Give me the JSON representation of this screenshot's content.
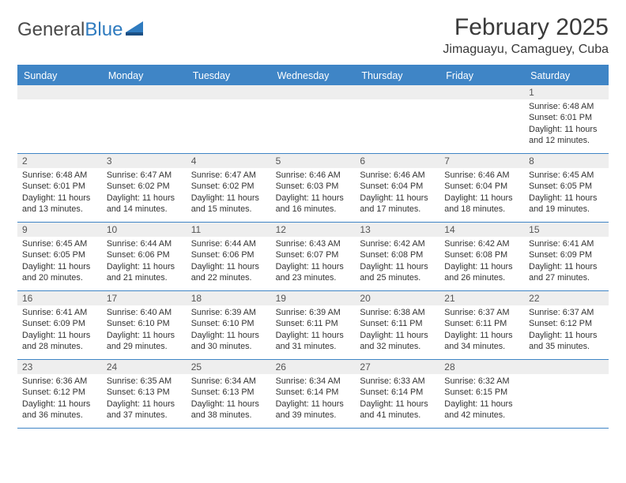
{
  "logo": {
    "text1": "General",
    "text2": "Blue"
  },
  "title": "February 2025",
  "location": "Jimaguayu, Camaguey, Cuba",
  "colors": {
    "header_bg": "#3f85c6",
    "header_text": "#ffffff",
    "datebar_bg": "#eeeeee",
    "body_text": "#333333",
    "logo_gray": "#4a4a4a",
    "logo_blue": "#2f7bbf"
  },
  "dayNames": [
    "Sunday",
    "Monday",
    "Tuesday",
    "Wednesday",
    "Thursday",
    "Friday",
    "Saturday"
  ],
  "weeks": [
    [
      null,
      null,
      null,
      null,
      null,
      null,
      {
        "n": "1",
        "sr": "6:48 AM",
        "ss": "6:01 PM",
        "dl": "11 hours and 12 minutes."
      }
    ],
    [
      {
        "n": "2",
        "sr": "6:48 AM",
        "ss": "6:01 PM",
        "dl": "11 hours and 13 minutes."
      },
      {
        "n": "3",
        "sr": "6:47 AM",
        "ss": "6:02 PM",
        "dl": "11 hours and 14 minutes."
      },
      {
        "n": "4",
        "sr": "6:47 AM",
        "ss": "6:02 PM",
        "dl": "11 hours and 15 minutes."
      },
      {
        "n": "5",
        "sr": "6:46 AM",
        "ss": "6:03 PM",
        "dl": "11 hours and 16 minutes."
      },
      {
        "n": "6",
        "sr": "6:46 AM",
        "ss": "6:04 PM",
        "dl": "11 hours and 17 minutes."
      },
      {
        "n": "7",
        "sr": "6:46 AM",
        "ss": "6:04 PM",
        "dl": "11 hours and 18 minutes."
      },
      {
        "n": "8",
        "sr": "6:45 AM",
        "ss": "6:05 PM",
        "dl": "11 hours and 19 minutes."
      }
    ],
    [
      {
        "n": "9",
        "sr": "6:45 AM",
        "ss": "6:05 PM",
        "dl": "11 hours and 20 minutes."
      },
      {
        "n": "10",
        "sr": "6:44 AM",
        "ss": "6:06 PM",
        "dl": "11 hours and 21 minutes."
      },
      {
        "n": "11",
        "sr": "6:44 AM",
        "ss": "6:06 PM",
        "dl": "11 hours and 22 minutes."
      },
      {
        "n": "12",
        "sr": "6:43 AM",
        "ss": "6:07 PM",
        "dl": "11 hours and 23 minutes."
      },
      {
        "n": "13",
        "sr": "6:42 AM",
        "ss": "6:08 PM",
        "dl": "11 hours and 25 minutes."
      },
      {
        "n": "14",
        "sr": "6:42 AM",
        "ss": "6:08 PM",
        "dl": "11 hours and 26 minutes."
      },
      {
        "n": "15",
        "sr": "6:41 AM",
        "ss": "6:09 PM",
        "dl": "11 hours and 27 minutes."
      }
    ],
    [
      {
        "n": "16",
        "sr": "6:41 AM",
        "ss": "6:09 PM",
        "dl": "11 hours and 28 minutes."
      },
      {
        "n": "17",
        "sr": "6:40 AM",
        "ss": "6:10 PM",
        "dl": "11 hours and 29 minutes."
      },
      {
        "n": "18",
        "sr": "6:39 AM",
        "ss": "6:10 PM",
        "dl": "11 hours and 30 minutes."
      },
      {
        "n": "19",
        "sr": "6:39 AM",
        "ss": "6:11 PM",
        "dl": "11 hours and 31 minutes."
      },
      {
        "n": "20",
        "sr": "6:38 AM",
        "ss": "6:11 PM",
        "dl": "11 hours and 32 minutes."
      },
      {
        "n": "21",
        "sr": "6:37 AM",
        "ss": "6:11 PM",
        "dl": "11 hours and 34 minutes."
      },
      {
        "n": "22",
        "sr": "6:37 AM",
        "ss": "6:12 PM",
        "dl": "11 hours and 35 minutes."
      }
    ],
    [
      {
        "n": "23",
        "sr": "6:36 AM",
        "ss": "6:12 PM",
        "dl": "11 hours and 36 minutes."
      },
      {
        "n": "24",
        "sr": "6:35 AM",
        "ss": "6:13 PM",
        "dl": "11 hours and 37 minutes."
      },
      {
        "n": "25",
        "sr": "6:34 AM",
        "ss": "6:13 PM",
        "dl": "11 hours and 38 minutes."
      },
      {
        "n": "26",
        "sr": "6:34 AM",
        "ss": "6:14 PM",
        "dl": "11 hours and 39 minutes."
      },
      {
        "n": "27",
        "sr": "6:33 AM",
        "ss": "6:14 PM",
        "dl": "11 hours and 41 minutes."
      },
      {
        "n": "28",
        "sr": "6:32 AM",
        "ss": "6:15 PM",
        "dl": "11 hours and 42 minutes."
      },
      null
    ]
  ],
  "labels": {
    "sunrise": "Sunrise:",
    "sunset": "Sunset:",
    "daylight": "Daylight:"
  }
}
